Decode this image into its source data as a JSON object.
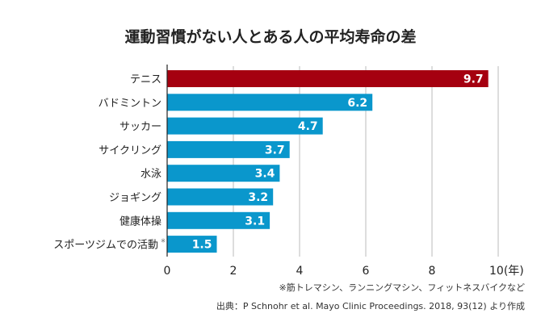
{
  "chart_data": {
    "type": "bar",
    "orientation": "horizontal",
    "title": "運動習慣がない人とある人の平均寿命の差",
    "categories": [
      "テニス",
      "バドミントン",
      "サッカー",
      "サイクリング",
      "水泳",
      "ジョギング",
      "健康体操",
      "スポーツジムでの活動"
    ],
    "category_note_marks": [
      "",
      "",
      "",
      "",
      "",
      "",
      "",
      "※"
    ],
    "values": [
      9.7,
      6.2,
      4.7,
      3.7,
      3.4,
      3.2,
      3.1,
      1.5
    ],
    "data_labels": [
      "9.7",
      "6.2",
      "4.7",
      "3.7",
      "3.4",
      "3.2",
      "3.1",
      "1.5"
    ],
    "xlim": [
      0,
      10
    ],
    "xticks": [
      "0",
      "2",
      "4",
      "6",
      "8",
      "10"
    ],
    "xunit": "(年)",
    "grid": true,
    "colors": {
      "highlight": "#a50010",
      "default": "#0a97cc",
      "grid": "#bbbbbb",
      "axis": "#222222"
    },
    "footnote": "※筋トレマシン、ランニングマシン、フィットネスバイクなど",
    "source": "出典：P Schnohr et al. Mayo Clinic Proceedings. 2018, 93(12) より作成"
  }
}
